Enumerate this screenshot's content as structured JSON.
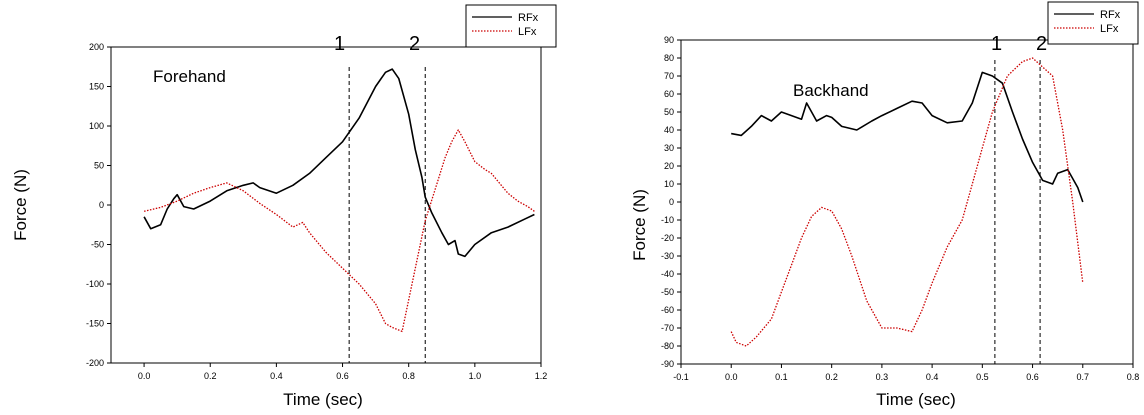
{
  "charts": [
    {
      "annotation": "Forehand",
      "markers": [
        "1",
        "2"
      ],
      "xlabel": "Time (sec)",
      "ylabel": "Force (N)"
    },
    {
      "annotation": "Backhand",
      "markers": [
        "1",
        "2"
      ],
      "xlabel": "Time (sec)",
      "ylabel": "Force (N)"
    }
  ],
  "chart_data": [
    {
      "type": "line",
      "title": "",
      "xlabel": "Time (sec)",
      "ylabel": "Force (N)",
      "xlim": [
        -0.1,
        1.2
      ],
      "ylim": [
        -200,
        200
      ],
      "xticks": [
        0.0,
        0.2,
        0.4,
        0.6,
        0.8,
        1.0,
        1.2
      ],
      "xtick_labels": [
        "0.0",
        "0.2",
        "0.4",
        "0.6",
        "0.8",
        "1.0",
        "1.2"
      ],
      "yticks": [
        200,
        150,
        100,
        50,
        0,
        -50,
        -100,
        -150,
        -200
      ],
      "ytick_labels": [
        "200",
        "150",
        "100",
        "50",
        "0",
        "-50",
        "-100",
        "-150",
        "-200"
      ],
      "grid": false,
      "legend": "top-right",
      "annotations": [
        {
          "text": "Forehand",
          "x": 0.08,
          "y": 145
        },
        {
          "text": "1",
          "x": 0.62,
          "y": 183
        },
        {
          "text": "2",
          "x": 0.85,
          "y": 183
        }
      ],
      "vlines": [
        0.62,
        0.85
      ],
      "series": [
        {
          "name": "RFx",
          "color": "#000000",
          "style": "solid",
          "x": [
            0.0,
            0.02,
            0.05,
            0.07,
            0.09,
            0.1,
            0.12,
            0.15,
            0.2,
            0.25,
            0.3,
            0.33,
            0.35,
            0.4,
            0.45,
            0.5,
            0.55,
            0.6,
            0.65,
            0.7,
            0.73,
            0.75,
            0.77,
            0.8,
            0.82,
            0.84,
            0.85,
            0.87,
            0.9,
            0.92,
            0.94,
            0.95,
            0.97,
            1.0,
            1.05,
            1.1,
            1.15,
            1.18
          ],
          "y": [
            -15,
            -30,
            -25,
            -5,
            8,
            13,
            -2,
            -5,
            5,
            18,
            25,
            28,
            22,
            15,
            25,
            40,
            60,
            80,
            110,
            150,
            168,
            172,
            160,
            115,
            70,
            35,
            10,
            -10,
            -35,
            -50,
            -45,
            -62,
            -65,
            -50,
            -35,
            -28,
            -18,
            -12
          ]
        },
        {
          "name": "LFx",
          "color": "#cc0000",
          "style": "dotted",
          "x": [
            0.0,
            0.05,
            0.1,
            0.15,
            0.2,
            0.25,
            0.3,
            0.35,
            0.4,
            0.45,
            0.48,
            0.5,
            0.55,
            0.6,
            0.65,
            0.7,
            0.73,
            0.75,
            0.78,
            0.8,
            0.82,
            0.85,
            0.88,
            0.91,
            0.93,
            0.95,
            0.97,
            1.0,
            1.03,
            1.05,
            1.08,
            1.1,
            1.13,
            1.16,
            1.18
          ],
          "y": [
            -8,
            -3,
            5,
            15,
            22,
            28,
            18,
            2,
            -12,
            -28,
            -22,
            -35,
            -60,
            -80,
            -100,
            -125,
            -150,
            -155,
            -160,
            -120,
            -80,
            -20,
            20,
            60,
            80,
            95,
            80,
            55,
            45,
            40,
            25,
            15,
            5,
            -2,
            -8
          ]
        }
      ]
    },
    {
      "type": "line",
      "title": "",
      "xlabel": "Time (sec)",
      "ylabel": "Force (N)",
      "xlim": [
        -0.1,
        0.8
      ],
      "ylim": [
        -90,
        90
      ],
      "xticks": [
        -0.1,
        0.0,
        0.1,
        0.2,
        0.3,
        0.4,
        0.5,
        0.6,
        0.7,
        0.8
      ],
      "xtick_labels": [
        "-0.1",
        "0.0",
        "0.1",
        "0.2",
        "0.3",
        "0.4",
        "0.5",
        "0.6",
        "0.7",
        "0.8"
      ],
      "yticks": [
        90,
        80,
        70,
        60,
        50,
        40,
        30,
        20,
        10,
        0,
        -10,
        -20,
        -30,
        -40,
        -50,
        -60,
        -70,
        -80,
        -90
      ],
      "ytick_labels": [
        "90",
        "80",
        "70",
        "60",
        "50",
        "40",
        "30",
        "20",
        "10",
        "0",
        "-10",
        "-20",
        "-30",
        "-40",
        "-50",
        "-60",
        "-70",
        "-80",
        "-90"
      ],
      "grid": false,
      "legend": "top-right",
      "annotations": [
        {
          "text": "Backhand",
          "x": 0.04,
          "y": 57
        },
        {
          "text": "1",
          "x": 0.525,
          "y": 82
        },
        {
          "text": "2",
          "x": 0.615,
          "y": 82
        }
      ],
      "vlines": [
        0.525,
        0.615
      ],
      "series": [
        {
          "name": "RFx",
          "color": "#000000",
          "style": "solid",
          "x": [
            0.0,
            0.02,
            0.04,
            0.06,
            0.08,
            0.1,
            0.12,
            0.14,
            0.15,
            0.17,
            0.19,
            0.2,
            0.22,
            0.25,
            0.28,
            0.3,
            0.33,
            0.36,
            0.38,
            0.4,
            0.43,
            0.46,
            0.48,
            0.5,
            0.52,
            0.54,
            0.56,
            0.58,
            0.6,
            0.62,
            0.64,
            0.65,
            0.67,
            0.69,
            0.7
          ],
          "y": [
            38,
            37,
            42,
            48,
            45,
            50,
            48,
            46,
            55,
            45,
            48,
            47,
            42,
            40,
            45,
            48,
            52,
            56,
            55,
            48,
            44,
            45,
            55,
            72,
            70,
            66,
            50,
            35,
            22,
            12,
            10,
            16,
            18,
            8,
            0
          ]
        },
        {
          "name": "LFx",
          "color": "#cc0000",
          "style": "dotted",
          "x": [
            0.0,
            0.01,
            0.03,
            0.05,
            0.08,
            0.1,
            0.12,
            0.14,
            0.16,
            0.18,
            0.2,
            0.22,
            0.24,
            0.27,
            0.3,
            0.33,
            0.36,
            0.38,
            0.4,
            0.43,
            0.46,
            0.48,
            0.5,
            0.52,
            0.55,
            0.58,
            0.6,
            0.62,
            0.64,
            0.66,
            0.68,
            0.7
          ],
          "y": [
            -72,
            -78,
            -80,
            -75,
            -65,
            -50,
            -35,
            -20,
            -8,
            -3,
            -5,
            -15,
            -30,
            -55,
            -70,
            -70,
            -72,
            -60,
            -45,
            -25,
            -10,
            10,
            30,
            50,
            70,
            78,
            80,
            75,
            70,
            40,
            0,
            -45
          ]
        }
      ]
    }
  ]
}
